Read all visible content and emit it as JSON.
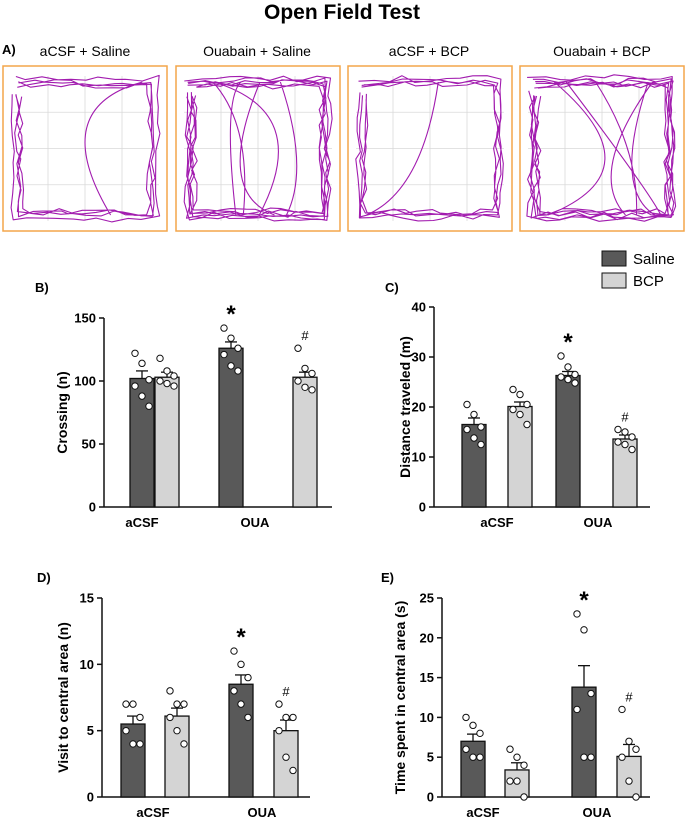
{
  "figure": {
    "title": "Open Field Test",
    "panel_labels": [
      "A)",
      "B)",
      "C)",
      "D)",
      "E)"
    ]
  },
  "tracks": {
    "titles": [
      "aCSF + Saline",
      "Ouabain + Saline",
      "aCSF + BCP",
      "Ouabain + BCP"
    ],
    "frame_color": "#f4a64a",
    "trace_color": "#a21caf",
    "grid_color": "#d9d9d9"
  },
  "legend": {
    "items": [
      {
        "name": "Saline",
        "color": "#595959"
      },
      {
        "name": "BCP",
        "color": "#d4d4d4"
      }
    ]
  },
  "chart_data": [
    {
      "type": "bar",
      "panel": "B)",
      "ylabel": "Crossing (n)",
      "categories": [
        "aCSF",
        "OUA"
      ],
      "yticks": [
        "0",
        "50",
        "100",
        "150"
      ],
      "ylim": [
        0,
        150
      ],
      "series": [
        {
          "name": "Saline",
          "values": [
            102,
            126
          ],
          "sem": [
            6,
            5
          ],
          "points": [
            [
              122,
              114,
              101,
              96,
              88,
              80
            ],
            [
              142,
              134,
              126,
              121,
              112,
              108
            ]
          ]
        },
        {
          "name": "BCP",
          "values": [
            103,
            103
          ],
          "sem": [
            4,
            4
          ],
          "points": [
            [
              118,
              108,
              104,
              100,
              98,
              96
            ],
            [
              126,
              110,
              106,
              100,
              95,
              93
            ]
          ]
        }
      ],
      "annotations": [
        {
          "category": "OUA",
          "series": "Saline",
          "text": "*"
        },
        {
          "category": "OUA",
          "series": "BCP",
          "text": "#"
        }
      ]
    },
    {
      "type": "bar",
      "panel": "C)",
      "ylabel": "Distance traveled (m)",
      "categories": [
        "aCSF",
        "OUA"
      ],
      "yticks": [
        "0",
        "10",
        "20",
        "30",
        "40"
      ],
      "ylim": [
        0,
        40
      ],
      "series": [
        {
          "name": "Saline",
          "values": [
            16.5,
            26.3
          ],
          "sem": [
            1.3,
            0.8
          ],
          "points": [
            [
              20.5,
              18.5,
              16.0,
              15.5,
              13.8,
              12.5
            ],
            [
              30.2,
              28.0,
              26.5,
              26.0,
              25.5,
              24.8
            ]
          ]
        },
        {
          "name": "BCP",
          "values": [
            20.1,
            13.6
          ],
          "sem": [
            0.9,
            0.8
          ],
          "points": [
            [
              23.5,
              22.5,
              20.5,
              19.5,
              18.5,
              16.5
            ],
            [
              15.5,
              15.0,
              14.0,
              13.0,
              12.5,
              11.5
            ]
          ]
        }
      ],
      "annotations": [
        {
          "category": "OUA",
          "series": "Saline",
          "text": "*"
        },
        {
          "category": "OUA",
          "series": "BCP",
          "text": "#"
        }
      ]
    },
    {
      "type": "bar",
      "panel": "D)",
      "ylabel": "Visit to central area (n)",
      "categories": [
        "aCSF",
        "OUA"
      ],
      "yticks": [
        "0",
        "5",
        "10",
        "15"
      ],
      "ylim": [
        0,
        15
      ],
      "series": [
        {
          "name": "Saline",
          "values": [
            5.5,
            8.5
          ],
          "sem": [
            0.6,
            0.7
          ],
          "points": [
            [
              7,
              7,
              6,
              5,
              4,
              4
            ],
            [
              11,
              10,
              9,
              8,
              7,
              6
            ]
          ]
        },
        {
          "name": "BCP",
          "values": [
            6.1,
            5.0
          ],
          "sem": [
            0.6,
            0.8
          ],
          "points": [
            [
              8,
              7,
              7,
              6,
              5,
              4
            ],
            [
              7,
              6,
              6,
              5,
              3,
              2
            ]
          ]
        }
      ],
      "annotations": [
        {
          "category": "OUA",
          "series": "Saline",
          "text": "*"
        },
        {
          "category": "OUA",
          "series": "BCP",
          "text": "#"
        }
      ]
    },
    {
      "type": "bar",
      "panel": "E)",
      "ylabel": "Time spent in central area (s)",
      "categories": [
        "aCSF",
        "OUA"
      ],
      "yticks": [
        "0",
        "5",
        "10",
        "15",
        "20",
        "25"
      ],
      "ylim": [
        0,
        25
      ],
      "series": [
        {
          "name": "Saline",
          "values": [
            7.0,
            13.8
          ],
          "sem": [
            0.9,
            2.7
          ],
          "points": [
            [
              10,
              9,
              8,
              6,
              5,
              5
            ],
            [
              23,
              21,
              13,
              11,
              5,
              5
            ]
          ]
        },
        {
          "name": "BCP",
          "values": [
            3.4,
            5.1
          ],
          "sem": [
            0.9,
            1.5
          ],
          "points": [
            [
              6,
              5,
              4,
              2,
              2,
              0
            ],
            [
              11,
              7,
              6,
              5,
              2,
              0
            ]
          ]
        }
      ],
      "annotations": [
        {
          "category": "OUA",
          "series": "Saline",
          "text": "*"
        },
        {
          "category": "OUA",
          "series": "BCP",
          "text": "#"
        }
      ]
    }
  ]
}
